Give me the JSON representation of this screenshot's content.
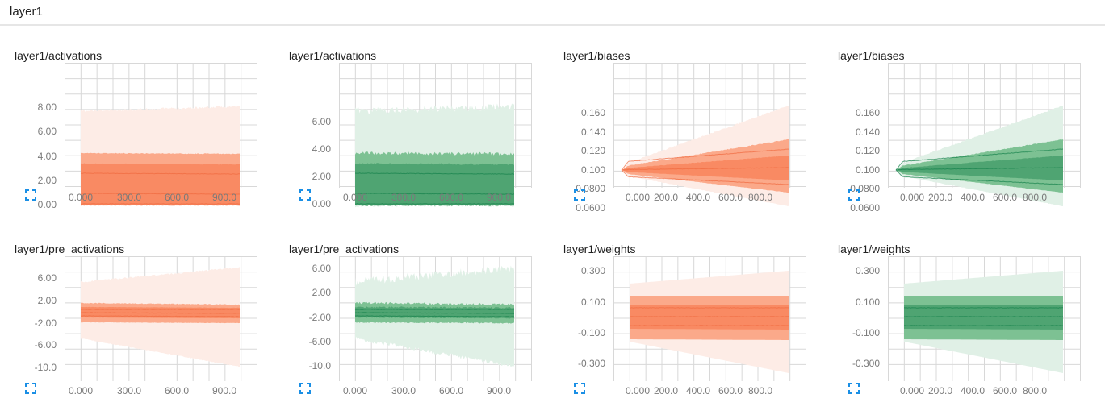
{
  "section": {
    "title": "layer1"
  },
  "colors": {
    "orange": {
      "band1": "#fdece6",
      "band2": "#fba98a",
      "band3": "#f98a63",
      "line": "#ef6a3e"
    },
    "green": {
      "band1": "#e0f0e6",
      "band2": "#7dc193",
      "band3": "#4fa472",
      "line": "#14804a"
    },
    "grid": "#d8d8d8",
    "icon": "#1a8fe5"
  },
  "icons": {
    "expand": "fullscreen-expand-icon"
  },
  "charts": [
    {
      "title": "layer1/activations",
      "y_ticks": [
        "8.00",
        "6.00",
        "4.00",
        "2.00",
        "0.00"
      ],
      "x_ticks": [
        "0.000",
        "300.0",
        "600.0",
        "900.0"
      ]
    },
    {
      "title": "layer1/activations",
      "y_ticks": [
        "6.00",
        "4.00",
        "2.00",
        "0.00"
      ],
      "x_ticks": [
        "0.000",
        "300.0",
        "600.0",
        "900.0"
      ]
    },
    {
      "title": "layer1/biases",
      "y_ticks": [
        "0.160",
        "0.140",
        "0.120",
        "0.100",
        "0.0800",
        "0.0600"
      ],
      "x_ticks": [
        "0.000",
        "200.0",
        "400.0",
        "600.0",
        "800.0"
      ]
    },
    {
      "title": "layer1/biases",
      "y_ticks": [
        "0.160",
        "0.140",
        "0.120",
        "0.100",
        "0.0800",
        "0.0600"
      ],
      "x_ticks": [
        "0.000",
        "200.0",
        "400.0",
        "600.0",
        "800.0"
      ]
    },
    {
      "title": "layer1/pre_activations",
      "y_ticks": [
        "6.00",
        "2.00",
        "-2.00",
        "-6.00",
        "-10.0"
      ],
      "x_ticks": [
        "0.000",
        "300.0",
        "600.0",
        "900.0"
      ]
    },
    {
      "title": "layer1/pre_activations",
      "y_ticks": [
        "6.00",
        "2.00",
        "-2.00",
        "-6.00",
        "-10.0"
      ],
      "x_ticks": [
        "0.000",
        "300.0",
        "600.0",
        "900.0"
      ]
    },
    {
      "title": "layer1/weights",
      "y_ticks": [
        "0.300",
        "0.100",
        "-0.100",
        "-0.300"
      ],
      "x_ticks": [
        "0.000",
        "200.0",
        "400.0",
        "600.0",
        "800.0"
      ]
    },
    {
      "title": "layer1/weights",
      "y_ticks": [
        "0.300",
        "0.100",
        "-0.100",
        "-0.300"
      ],
      "x_ticks": [
        "0.000",
        "200.0",
        "400.0",
        "600.0",
        "800.0"
      ]
    }
  ]
}
